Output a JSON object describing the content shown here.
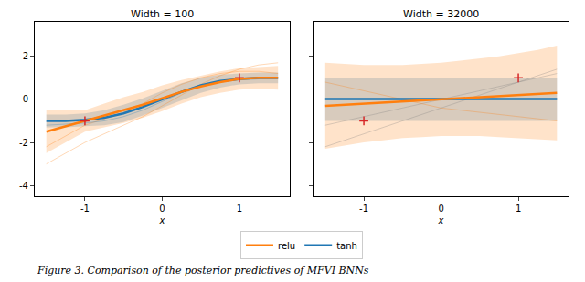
{
  "chart_data": [
    {
      "type": "line",
      "title": "Width = 100",
      "xlabel": "x",
      "xlim": [
        -1.65,
        1.65
      ],
      "xticks": [
        -1,
        0,
        1
      ],
      "ylim": [
        -4.5,
        3.6
      ],
      "yticks": [
        -4,
        -2,
        0,
        2
      ],
      "legend": "bottom",
      "x": [
        -1.5,
        -1.25,
        -1,
        -0.75,
        -0.5,
        -0.25,
        0,
        0.25,
        0.5,
        0.75,
        1,
        1.25,
        1.5
      ],
      "series": [
        {
          "name": "tanh",
          "color": "#1f77b4",
          "values": [
            -1.0,
            -1.0,
            -0.95,
            -0.85,
            -0.65,
            -0.35,
            0.0,
            0.35,
            0.65,
            0.85,
            0.95,
            1.0,
            1.0
          ],
          "lower": [
            -1.3,
            -1.3,
            -1.25,
            -1.2,
            -1.05,
            -0.75,
            -0.4,
            -0.05,
            0.3,
            0.55,
            0.7,
            0.75,
            0.75
          ],
          "upper": [
            -0.7,
            -0.7,
            -0.65,
            -0.5,
            -0.25,
            0.05,
            0.4,
            0.75,
            1.0,
            1.15,
            1.2,
            1.25,
            1.25
          ]
        },
        {
          "name": "relu",
          "color": "#ff7f0e",
          "values": [
            -1.5,
            -1.25,
            -1.0,
            -0.75,
            -0.5,
            -0.25,
            0.05,
            0.35,
            0.6,
            0.8,
            0.95,
            1.0,
            1.0
          ],
          "lower": [
            -2.5,
            -2.0,
            -1.5,
            -1.3,
            -1.1,
            -0.85,
            -0.55,
            -0.2,
            0.1,
            0.3,
            0.45,
            0.5,
            0.45
          ],
          "upper": [
            -0.5,
            -0.5,
            -0.5,
            -0.2,
            0.1,
            0.35,
            0.65,
            0.9,
            1.1,
            1.3,
            1.45,
            1.5,
            1.55
          ]
        }
      ],
      "samples": [
        {
          "color": "#ff7f0e",
          "values": [
            -3.0,
            -2.5,
            -2.0,
            -1.6,
            -1.2,
            -0.8,
            -0.3,
            0.2,
            0.7,
            1.1,
            1.4,
            1.6,
            1.7
          ]
        },
        {
          "color": "#ff7f0e",
          "values": [
            -2.2,
            -1.7,
            -1.2,
            -0.9,
            -0.6,
            -0.2,
            0.3,
            0.7,
            1.0,
            1.2,
            1.3,
            1.3,
            1.2
          ]
        },
        {
          "color": "#1f77b4",
          "values": [
            -1.2,
            -1.15,
            -1.1,
            -1.0,
            -0.8,
            -0.5,
            -0.1,
            0.3,
            0.6,
            0.8,
            0.9,
            0.95,
            0.95
          ]
        }
      ],
      "points": {
        "x": [
          -1,
          1
        ],
        "y": [
          -1,
          1
        ],
        "color": "#d62728",
        "marker": "+"
      }
    },
    {
      "type": "line",
      "title": "Width = 32000",
      "xlabel": "x",
      "xlim": [
        -1.65,
        1.65
      ],
      "xticks": [
        -1,
        0,
        1
      ],
      "ylim": [
        -4.5,
        3.6
      ],
      "yticks": [
        -4,
        -2,
        0,
        2
      ],
      "tick_labels": "x",
      "x": [
        -1.5,
        -1.25,
        -1,
        -0.75,
        -0.5,
        -0.25,
        0,
        0.25,
        0.5,
        0.75,
        1,
        1.25,
        1.5
      ],
      "series": [
        {
          "name": "tanh",
          "color": "#1f77b4",
          "values": [
            0.02,
            0.02,
            0.02,
            0.02,
            0.02,
            0.02,
            0.02,
            0.02,
            0.02,
            0.02,
            0.02,
            0.02,
            0.02
          ],
          "lower": [
            -1.0,
            -1.0,
            -1.0,
            -1.0,
            -1.0,
            -1.0,
            -1.0,
            -1.0,
            -1.0,
            -1.0,
            -1.0,
            -1.0,
            -1.0
          ],
          "upper": [
            1.0,
            1.0,
            1.0,
            1.0,
            1.0,
            1.0,
            1.0,
            1.0,
            1.0,
            1.0,
            1.0,
            1.0,
            1.0
          ]
        },
        {
          "name": "relu",
          "color": "#ff7f0e",
          "values": [
            -0.3,
            -0.25,
            -0.2,
            -0.15,
            -0.1,
            -0.05,
            0.0,
            0.05,
            0.1,
            0.15,
            0.2,
            0.25,
            0.3
          ],
          "lower": [
            -2.3,
            -2.15,
            -2.0,
            -1.9,
            -1.8,
            -1.75,
            -1.7,
            -1.7,
            -1.7,
            -1.75,
            -1.8,
            -1.85,
            -1.9
          ],
          "upper": [
            1.7,
            1.65,
            1.6,
            1.6,
            1.6,
            1.65,
            1.7,
            1.8,
            1.9,
            2.0,
            2.15,
            2.3,
            2.5
          ]
        }
      ],
      "samples": [
        {
          "color": "#7f7f7f",
          "values": [
            -1.2,
            -1.0,
            -0.8,
            -0.6,
            -0.4,
            -0.2,
            0.0,
            0.2,
            0.4,
            0.6,
            0.8,
            1.0,
            1.2
          ]
        },
        {
          "color": "#ff7f0e",
          "values": [
            0.8,
            0.6,
            0.4,
            0.2,
            0.0,
            -0.2,
            -0.4,
            -0.5,
            -0.6,
            -0.7,
            -0.8,
            -0.9,
            -1.0
          ]
        },
        {
          "color": "#7f7f7f",
          "values": [
            -2.2,
            -1.9,
            -1.6,
            -1.3,
            -1.0,
            -0.7,
            -0.4,
            -0.1,
            0.2,
            0.5,
            0.8,
            1.1,
            1.4
          ]
        }
      ],
      "points": {
        "x": [
          -1,
          1
        ],
        "y": [
          -1,
          1
        ],
        "color": "#d62728",
        "marker": "+"
      }
    }
  ],
  "caption": "Figure 3. Comparison of the posterior predictives of MFVI BNNs"
}
